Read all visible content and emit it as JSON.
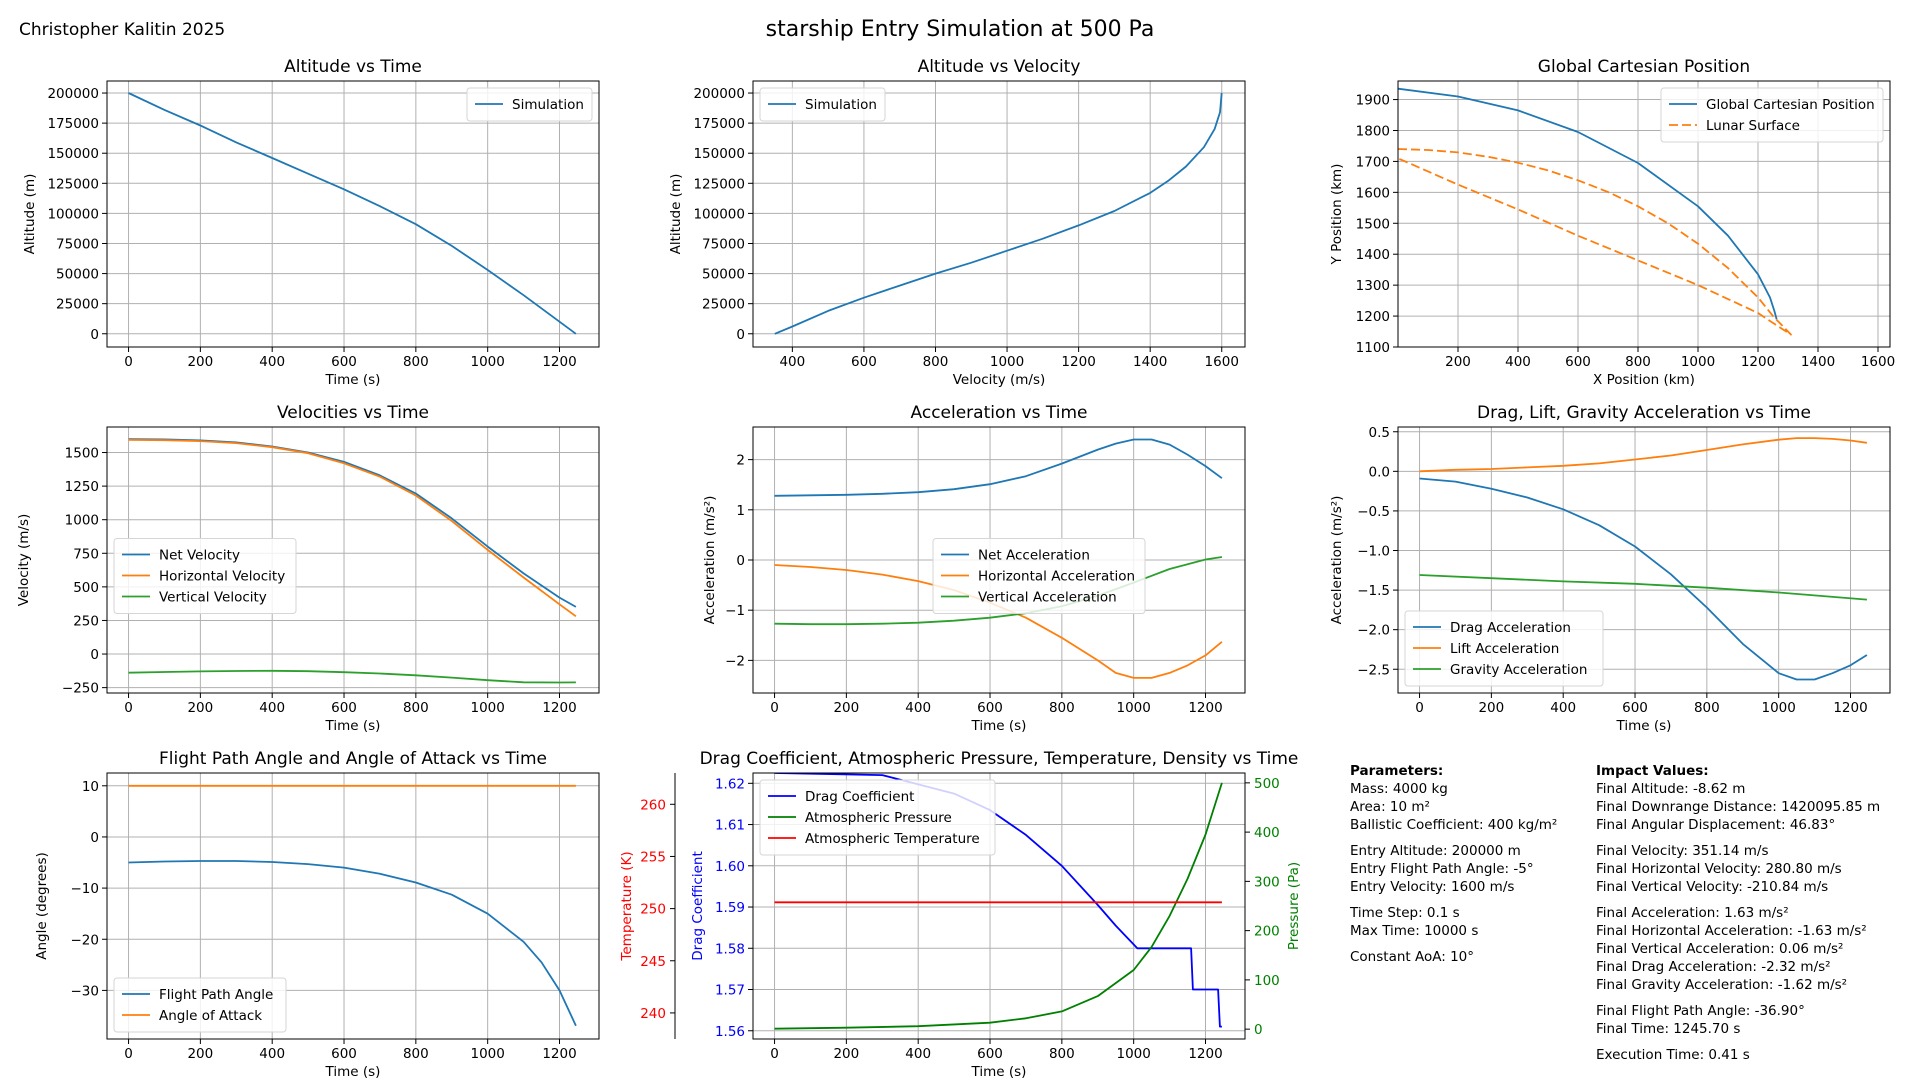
{
  "author": "Christopher Kalitin 2025",
  "suptitle": "starship Entry Simulation at 500 Pa",
  "colors": {
    "blue": "#1f77b4",
    "orange": "#ff7f0e",
    "green": "#2ca02c",
    "pure_blue": "#0000ff",
    "pure_green": "#008000",
    "pure_red": "#ff0000"
  },
  "chart_data": [
    {
      "id": "alt_time",
      "type": "line",
      "title": "Altitude vs Time",
      "xlabel": "Time (s)",
      "ylabel": "Altitude (m)",
      "xlim": [
        -60,
        1310
      ],
      "ylim": [
        -11000,
        210000
      ],
      "xticks": [
        0,
        200,
        400,
        600,
        800,
        1000,
        1200
      ],
      "yticks": [
        0,
        25000,
        50000,
        75000,
        100000,
        125000,
        150000,
        175000,
        200000
      ],
      "grid": true,
      "legend": "top-right",
      "series": [
        {
          "name": "Simulation",
          "color": "#1f77b4",
          "x": [
            0,
            100,
            200,
            300,
            400,
            500,
            600,
            700,
            800,
            900,
            1000,
            1100,
            1200,
            1245.7
          ],
          "y": [
            200000,
            186000,
            173000,
            159000,
            146000,
            133000,
            120000,
            106000,
            91000,
            73000,
            53000,
            32000,
            10000,
            0
          ]
        }
      ]
    },
    {
      "id": "alt_vel",
      "type": "line",
      "title": "Altitude vs Velocity",
      "xlabel": "Velocity (m/s)",
      "ylabel": "Altitude (m)",
      "xlim": [
        290,
        1665
      ],
      "ylim": [
        -11000,
        210000
      ],
      "xticks": [
        400,
        600,
        800,
        1000,
        1200,
        1400,
        1600
      ],
      "yticks": [
        0,
        25000,
        50000,
        75000,
        100000,
        125000,
        150000,
        175000,
        200000
      ],
      "grid": true,
      "legend": "top-left",
      "series": [
        {
          "name": "Simulation",
          "color": "#1f77b4",
          "x": [
            351,
            400,
            500,
            600,
            700,
            800,
            900,
            1000,
            1100,
            1200,
            1300,
            1400,
            1450,
            1500,
            1550,
            1580,
            1595,
            1600
          ],
          "y": [
            0,
            6000,
            19000,
            30000,
            40000,
            50000,
            59000,
            69000,
            79000,
            90000,
            102000,
            117000,
            127000,
            139000,
            155000,
            170000,
            184000,
            200000
          ]
        }
      ]
    },
    {
      "id": "global_pos",
      "type": "line",
      "title": "Global Cartesian Position",
      "xlabel": "X Position (km)",
      "ylabel": "Y Position (km)",
      "xlim": [
        0,
        1640
      ],
      "ylim": [
        1100,
        1960
      ],
      "xticks": [
        200,
        400,
        600,
        800,
        1000,
        1200,
        1400,
        1600
      ],
      "yticks": [
        1100,
        1200,
        1300,
        1400,
        1500,
        1600,
        1700,
        1800,
        1900
      ],
      "grid": true,
      "legend": "top-right",
      "series": [
        {
          "name": "Global Cartesian Position",
          "color": "#1f77b4",
          "dash": false,
          "x": [
            0,
            200,
            400,
            600,
            800,
            1000,
            1100,
            1200,
            1240,
            1255,
            1262
          ],
          "y": [
            1935,
            1910,
            1865,
            1795,
            1695,
            1555,
            1460,
            1335,
            1260,
            1215,
            1190
          ]
        },
        {
          "name": "Lunar Surface",
          "color": "#ff7f0e",
          "dash": true,
          "x": [
            0,
            100,
            200,
            300,
            400,
            500,
            600,
            700,
            800,
            900,
            1000,
            1100,
            1200,
            1250,
            1290,
            1310,
            1270,
            1200,
            1000,
            800,
            600,
            400,
            200,
            0
          ],
          "y": [
            1740,
            1737,
            1729,
            1715,
            1696,
            1671,
            1639,
            1601,
            1555,
            1500,
            1434,
            1355,
            1260,
            1200,
            1160,
            1140,
            1165,
            1210,
            1300,
            1380,
            1460,
            1545,
            1625,
            1710
          ]
        }
      ]
    },
    {
      "id": "vel_time",
      "type": "line",
      "title": "Velocities vs Time",
      "xlabel": "Time (s)",
      "ylabel": "Velocity (m/s)",
      "xlim": [
        -60,
        1310
      ],
      "ylim": [
        -290,
        1690
      ],
      "xticks": [
        0,
        200,
        400,
        600,
        800,
        1000,
        1200
      ],
      "yticks": [
        -250,
        0,
        250,
        500,
        750,
        1000,
        1250,
        1500
      ],
      "grid": true,
      "legend": "center-left",
      "series": [
        {
          "name": "Net Velocity",
          "color": "#1f77b4",
          "x": [
            0,
            100,
            200,
            300,
            400,
            500,
            600,
            700,
            800,
            900,
            1000,
            1100,
            1200,
            1245.7
          ],
          "y": [
            1600,
            1598,
            1590,
            1575,
            1545,
            1500,
            1430,
            1330,
            1195,
            1010,
            800,
            600,
            420,
            351
          ]
        },
        {
          "name": "Horizontal Velocity",
          "color": "#ff7f0e",
          "x": [
            0,
            100,
            200,
            300,
            400,
            500,
            600,
            700,
            800,
            900,
            1000,
            1100,
            1200,
            1245.7
          ],
          "y": [
            1594,
            1592,
            1585,
            1570,
            1540,
            1495,
            1420,
            1320,
            1180,
            990,
            775,
            570,
            370,
            281
          ]
        },
        {
          "name": "Vertical Velocity",
          "color": "#2ca02c",
          "x": [
            0,
            100,
            200,
            300,
            400,
            500,
            600,
            700,
            800,
            900,
            1000,
            1100,
            1200,
            1245.7
          ],
          "y": [
            -139,
            -134,
            -129,
            -126,
            -125,
            -128,
            -135,
            -145,
            -158,
            -175,
            -195,
            -210,
            -212,
            -210.8
          ]
        }
      ]
    },
    {
      "id": "acc_time",
      "type": "line",
      "title": "Acceleration vs Time",
      "xlabel": "Time (s)",
      "ylabel": "Acceleration (m/s²)",
      "xlim": [
        -60,
        1310
      ],
      "ylim": [
        -2.65,
        2.65
      ],
      "xticks": [
        0,
        200,
        400,
        600,
        800,
        1000,
        1200
      ],
      "yticks": [
        -2,
        -1,
        0,
        1,
        2
      ],
      "grid": true,
      "legend": "center",
      "series": [
        {
          "name": "Net Acceleration",
          "color": "#1f77b4",
          "x": [
            0,
            100,
            200,
            300,
            400,
            500,
            600,
            700,
            800,
            900,
            950,
            1000,
            1050,
            1100,
            1150,
            1200,
            1245.7
          ],
          "y": [
            1.28,
            1.29,
            1.3,
            1.32,
            1.35,
            1.41,
            1.51,
            1.67,
            1.92,
            2.2,
            2.32,
            2.4,
            2.4,
            2.3,
            2.1,
            1.87,
            1.63
          ]
        },
        {
          "name": "Horizontal Acceleration",
          "color": "#ff7f0e",
          "x": [
            0,
            100,
            200,
            300,
            400,
            500,
            600,
            700,
            800,
            900,
            950,
            1000,
            1050,
            1100,
            1150,
            1200,
            1245.7
          ],
          "y": [
            -0.1,
            -0.14,
            -0.2,
            -0.29,
            -0.42,
            -0.6,
            -0.85,
            -1.15,
            -1.55,
            -2.0,
            -2.25,
            -2.35,
            -2.35,
            -2.25,
            -2.1,
            -1.9,
            -1.63
          ]
        },
        {
          "name": "Vertical Acceleration",
          "color": "#2ca02c",
          "x": [
            0,
            100,
            200,
            300,
            400,
            500,
            600,
            700,
            800,
            900,
            1000,
            1100,
            1200,
            1245.7
          ],
          "y": [
            -1.27,
            -1.28,
            -1.28,
            -1.27,
            -1.25,
            -1.21,
            -1.15,
            -1.06,
            -0.92,
            -0.71,
            -0.45,
            -0.18,
            0.01,
            0.06
          ]
        }
      ]
    },
    {
      "id": "dlg_time",
      "type": "line",
      "title": "Drag, Lift, Gravity Acceleration vs Time",
      "xlabel": "Time (s)",
      "ylabel": "Acceleration (m/s²)",
      "xlim": [
        -60,
        1310
      ],
      "ylim": [
        -2.8,
        0.56
      ],
      "xticks": [
        0,
        200,
        400,
        600,
        800,
        1000,
        1200
      ],
      "yticks": [
        -2.5,
        -2.0,
        -1.5,
        -1.0,
        -0.5,
        0.0,
        0.5
      ],
      "grid": true,
      "legend": "bottom-left",
      "series": [
        {
          "name": "Drag Acceleration",
          "color": "#1f77b4",
          "x": [
            0,
            100,
            200,
            300,
            400,
            500,
            600,
            700,
            800,
            900,
            1000,
            1050,
            1100,
            1150,
            1200,
            1245.7
          ],
          "y": [
            -0.09,
            -0.13,
            -0.22,
            -0.33,
            -0.48,
            -0.68,
            -0.95,
            -1.3,
            -1.72,
            -2.18,
            -2.55,
            -2.63,
            -2.63,
            -2.55,
            -2.45,
            -2.32
          ]
        },
        {
          "name": "Lift Acceleration",
          "color": "#ff7f0e",
          "x": [
            0,
            100,
            200,
            300,
            400,
            500,
            600,
            700,
            800,
            900,
            1000,
            1050,
            1100,
            1150,
            1200,
            1245.7
          ],
          "y": [
            0.0,
            0.02,
            0.03,
            0.05,
            0.07,
            0.1,
            0.15,
            0.2,
            0.27,
            0.34,
            0.4,
            0.42,
            0.42,
            0.41,
            0.39,
            0.36
          ]
        },
        {
          "name": "Gravity Acceleration",
          "color": "#2ca02c",
          "x": [
            0,
            200,
            400,
            600,
            800,
            1000,
            1245.7
          ],
          "y": [
            -1.31,
            -1.35,
            -1.39,
            -1.42,
            -1.47,
            -1.53,
            -1.62
          ]
        }
      ]
    },
    {
      "id": "fpa_time",
      "type": "line",
      "title": "Flight Path Angle and Angle of Attack vs Time",
      "xlabel": "Time (s)",
      "ylabel": "Angle (degrees)",
      "xlim": [
        -60,
        1310
      ],
      "ylim": [
        -39.5,
        12.5
      ],
      "xticks": [
        0,
        200,
        400,
        600,
        800,
        1000,
        1200
      ],
      "yticks": [
        -30,
        -20,
        -10,
        0,
        10
      ],
      "grid": true,
      "legend": "bottom-left",
      "series": [
        {
          "name": "Flight Path Angle",
          "color": "#1f77b4",
          "x": [
            0,
            100,
            200,
            300,
            400,
            500,
            600,
            700,
            800,
            900,
            1000,
            1100,
            1150,
            1200,
            1245.7
          ],
          "y": [
            -5,
            -4.8,
            -4.7,
            -4.7,
            -4.9,
            -5.3,
            -6.0,
            -7.2,
            -8.9,
            -11.3,
            -15.0,
            -20.5,
            -24.5,
            -30.0,
            -36.9
          ]
        },
        {
          "name": "Angle of Attack",
          "color": "#ff7f0e",
          "x": [
            0,
            1245.7
          ],
          "y": [
            10,
            10
          ]
        }
      ]
    },
    {
      "id": "drag_coef",
      "type": "line",
      "title": "Drag Coefficient, Atmospheric Pressure, Temperature, Density vs Time",
      "xlabel": "Time (s)",
      "ylabel": "Drag Coefficient",
      "ylabel_right": "Pressure (Pa)",
      "ylabel_offset": "Temperature (K)",
      "xlim": [
        -60,
        1310
      ],
      "ylim": [
        1.558,
        1.6225
      ],
      "ylim_right": [
        -20,
        520
      ],
      "ylim_offset": [
        237.5,
        263
      ],
      "xticks": [
        0,
        200,
        400,
        600,
        800,
        1000,
        1200
      ],
      "yticks": [
        1.56,
        1.57,
        1.58,
        1.59,
        1.6,
        1.61,
        1.62
      ],
      "yticks_right": [
        0,
        100,
        200,
        300,
        400,
        500
      ],
      "yticks_offset": [
        240,
        245,
        250,
        255,
        260
      ],
      "grid": true,
      "legend": "top-left",
      "series": [
        {
          "name": "Drag Coefficient",
          "color": "#0000ff",
          "axis": "left",
          "step": true,
          "x": [
            0,
            300,
            500,
            600,
            700,
            800,
            900,
            950,
            1010,
            1160,
            1165,
            1235,
            1240,
            1245.7
          ],
          "y": [
            1.6225,
            1.622,
            1.6175,
            1.6135,
            1.6075,
            1.6,
            1.5905,
            1.5855,
            1.58,
            1.58,
            1.57,
            1.57,
            1.561,
            1.561
          ]
        },
        {
          "name": "Atmospheric Pressure",
          "color": "#008000",
          "axis": "right",
          "x": [
            0,
            200,
            400,
            600,
            700,
            800,
            900,
            1000,
            1050,
            1100,
            1150,
            1200,
            1245.7
          ],
          "y": [
            1,
            3,
            6,
            13,
            22,
            36,
            67,
            120,
            167,
            230,
            305,
            395,
            500
          ]
        },
        {
          "name": "Atmospheric Temperature",
          "color": "#ff0000",
          "axis": "offset",
          "x": [
            0,
            1245.7
          ],
          "y": [
            250.6,
            250.6
          ]
        }
      ]
    }
  ],
  "parameters": {
    "title": "Parameters:",
    "groups": [
      [
        "Mass: 4000 kg",
        "Area: 10 m²",
        "Ballistic Coefficient: 400 kg/m²"
      ],
      [
        "Entry Altitude: 200000 m",
        "Entry Flight Path Angle: -5°",
        "Entry Velocity: 1600 m/s"
      ],
      [
        "Time Step: 0.1 s",
        "Max Time: 10000 s"
      ],
      [
        "Constant AoA: 10°"
      ]
    ]
  },
  "impact": {
    "title": "Impact Values:",
    "groups": [
      [
        "Final Altitude: -8.62 m",
        "Final Downrange Distance: 1420095.85 m",
        "Final Angular Displacement: 46.83°"
      ],
      [
        "Final Velocity: 351.14 m/s",
        "Final Horizontal Velocity: 280.80 m/s",
        "Final Vertical Velocity: -210.84 m/s"
      ],
      [
        "Final Acceleration: 1.63 m/s²",
        "Final Horizontal Acceleration: -1.63 m/s²",
        "Final Vertical Acceleration: 0.06 m/s²",
        "Final Drag Acceleration: -2.32 m/s²",
        "Final Gravity Acceleration: -1.62 m/s²"
      ],
      [
        "Final Flight Path Angle: -36.90°",
        "Final Time: 1245.70 s"
      ],
      [
        "Execution Time: 0.41 s"
      ]
    ]
  }
}
